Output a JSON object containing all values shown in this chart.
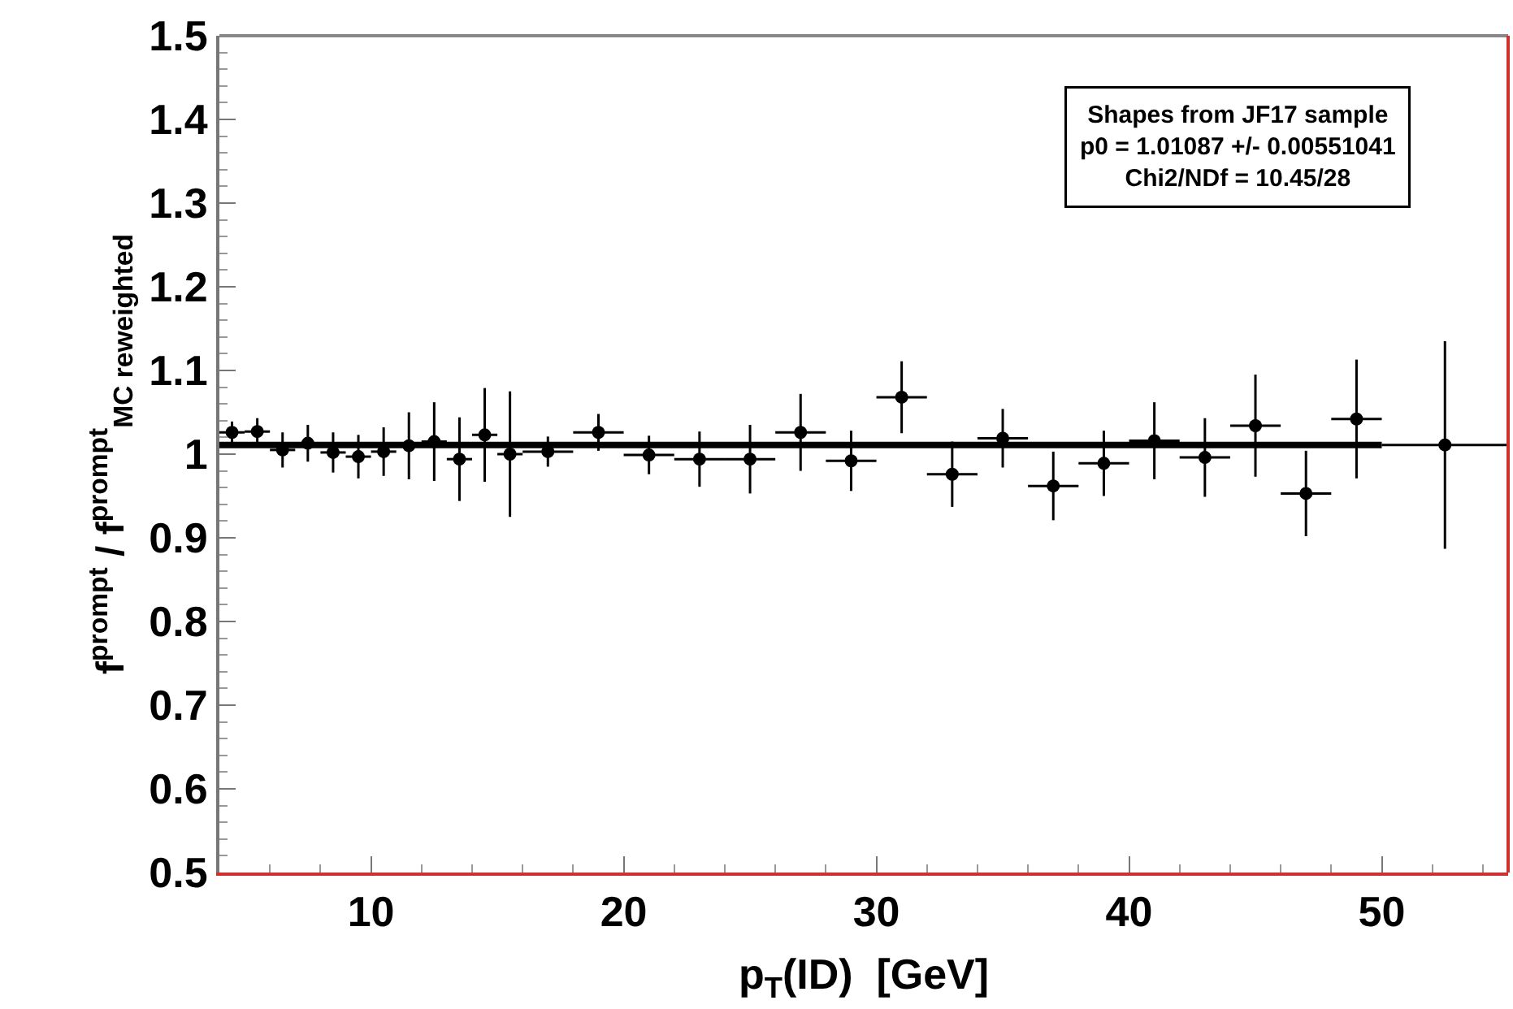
{
  "chart_data": {
    "type": "scatter",
    "xlabel": "p$_{T}$(ID)  [GeV]",
    "ylabel": "f$^{prompt}$ / f$^{prompt}$$_{MC reweighted}$",
    "annotations": [
      "Shapes from JF17 sample",
      "p0 = 1.01087 +/- 0.00551041",
      "Chi2/NDf = 10.45/28"
    ],
    "series": [
      {
        "color": "#000000",
        "marker": "circle",
        "x": [
          4.5,
          5.5,
          6.5,
          7.5,
          8.5,
          9.5,
          10.5,
          11.5,
          12.5,
          13.5,
          14.5,
          15.5,
          17,
          19,
          21,
          23,
          25,
          27,
          29,
          31,
          33,
          35,
          37,
          39,
          41,
          43,
          45,
          47,
          49,
          52.5
        ],
        "values": [
          1.026,
          1.027,
          1.005,
          1.013,
          1.002,
          0.997,
          1.003,
          1.01,
          1.015,
          0.994,
          1.023,
          1.0,
          1.003,
          1.026,
          0.999,
          0.994,
          0.994,
          1.026,
          0.992,
          1.068,
          0.976,
          1.019,
          0.962,
          0.989,
          1.016,
          0.996,
          1.034,
          0.953,
          1.042,
          1.011
        ],
        "errors": [
          0.013,
          0.016,
          0.021,
          0.022,
          0.024,
          0.026,
          0.029,
          0.04,
          0.047,
          0.05,
          0.056,
          0.075,
          0.018,
          0.022,
          0.023,
          0.033,
          0.041,
          0.046,
          0.036,
          0.043,
          0.039,
          0.035,
          0.041,
          0.039,
          0.046,
          0.047,
          0.061,
          0.051,
          0.071,
          0.124
        ],
        "xerrors": [
          0.5,
          0.5,
          0.5,
          0.5,
          0.5,
          0.5,
          0.5,
          0.5,
          0.5,
          0.5,
          0.5,
          0.5,
          1,
          1,
          1,
          1,
          1,
          1,
          1,
          1,
          1,
          1,
          1,
          1,
          1,
          1,
          1,
          1,
          1,
          2.5
        ]
      },
      {
        "type": "line",
        "color": "#000000",
        "marker": "none",
        "x": [
          4,
          50
        ],
        "values": [
          1.011,
          1.011
        ]
      }
    ],
    "xlim": [
      4,
      55
    ],
    "xticks": [
      10,
      20,
      30,
      40,
      50
    ],
    "ylim": [
      0.5,
      1.5
    ],
    "yticks": [
      0.5,
      0.6,
      0.7,
      0.8,
      0.9,
      1,
      1.1,
      1.2,
      1.3,
      1.4,
      1.5
    ]
  }
}
